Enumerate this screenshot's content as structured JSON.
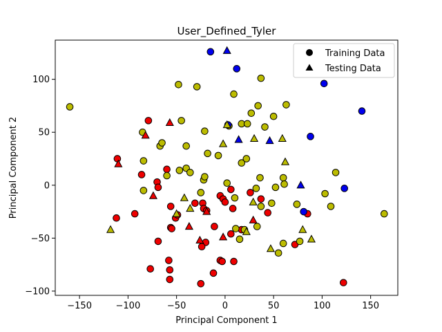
{
  "chart_data": {
    "type": "scatter",
    "title": "User_Defined_Tyler",
    "xlabel": "Principal Component 1",
    "ylabel": "Principal Component 2",
    "xlim": [
      -175,
      178
    ],
    "ylim": [
      -104,
      137
    ],
    "x_ticks": [
      -150,
      -100,
      -50,
      0,
      50,
      100,
      150
    ],
    "y_ticks": [
      -100,
      -50,
      0,
      50,
      100
    ],
    "grid": false,
    "legend_position": "top-right",
    "legend": [
      {
        "label": "Training Data",
        "marker": "circle"
      },
      {
        "label": "Testing Data",
        "marker": "triangle"
      }
    ],
    "colors": {
      "red": "#ee0000",
      "yellow": "#bcbc00",
      "blue": "#0000ee",
      "edge": "#000000"
    },
    "series": [
      {
        "marker": "circle",
        "color": "red",
        "points": [
          [
            -111,
            25
          ],
          [
            -112,
            -31
          ],
          [
            -93,
            -27
          ],
          [
            -86,
            10
          ],
          [
            -79,
            61
          ],
          [
            -70,
            3
          ],
          [
            -69,
            -2
          ],
          [
            -69,
            -53
          ],
          [
            -77,
            -79
          ],
          [
            -60,
            15
          ],
          [
            -58,
            -71
          ],
          [
            -57,
            -80
          ],
          [
            -57,
            -89
          ],
          [
            -56,
            -20
          ],
          [
            -56,
            -40
          ],
          [
            -55,
            -41
          ],
          [
            -51,
            -31
          ],
          [
            -49,
            -28
          ],
          [
            -31,
            -17
          ],
          [
            -23,
            -17
          ],
          [
            -22,
            -22
          ],
          [
            -20,
            -54
          ],
          [
            -24,
            -58
          ],
          [
            -25,
            -93
          ],
          [
            -12,
            -83
          ],
          [
            -19,
            -24
          ],
          [
            -11,
            -39
          ],
          [
            -5,
            -71
          ],
          [
            -3,
            -72
          ],
          [
            -5,
            -10
          ],
          [
            -2,
            -13
          ],
          [
            0,
            -16
          ],
          [
            6,
            -4
          ],
          [
            6,
            -46
          ],
          [
            8,
            -22
          ],
          [
            9,
            -72
          ],
          [
            17,
            -42
          ],
          [
            26,
            -7
          ],
          [
            37,
            -13
          ],
          [
            44,
            -26
          ],
          [
            72,
            -56
          ],
          [
            85,
            -27
          ],
          [
            122,
            -92
          ]
        ]
      },
      {
        "marker": "circle",
        "color": "yellow",
        "points": [
          [
            -160,
            74
          ],
          [
            -85,
            50
          ],
          [
            -84,
            23
          ],
          [
            -84,
            -5
          ],
          [
            -67,
            37
          ],
          [
            -65,
            40
          ],
          [
            -60,
            9
          ],
          [
            -48,
            95
          ],
          [
            -47,
            14
          ],
          [
            -45,
            61
          ],
          [
            -40,
            37
          ],
          [
            -40,
            16
          ],
          [
            -36,
            12
          ],
          [
            -29,
            93
          ],
          [
            -25,
            -7
          ],
          [
            -22,
            5
          ],
          [
            -21,
            8
          ],
          [
            -21,
            51
          ],
          [
            -18,
            30
          ],
          [
            -7,
            28
          ],
          [
            2,
            2
          ],
          [
            4,
            56
          ],
          [
            9,
            86
          ],
          [
            10,
            -12
          ],
          [
            11,
            -41
          ],
          [
            15,
            -51
          ],
          [
            17,
            58
          ],
          [
            17,
            21
          ],
          [
            20,
            -42
          ],
          [
            22,
            25
          ],
          [
            23,
            58
          ],
          [
            27,
            68
          ],
          [
            32,
            -3
          ],
          [
            33,
            -39
          ],
          [
            34,
            75
          ],
          [
            36,
            7
          ],
          [
            37,
            -20
          ],
          [
            37,
            101
          ],
          [
            41,
            55
          ],
          [
            48,
            -17
          ],
          [
            50,
            65
          ],
          [
            52,
            -2
          ],
          [
            55,
            -64
          ],
          [
            60,
            -55
          ],
          [
            60,
            7
          ],
          [
            61,
            1
          ],
          [
            63,
            76
          ],
          [
            74,
            -18
          ],
          [
            77,
            -53
          ],
          [
            103,
            -8
          ],
          [
            109,
            -20
          ],
          [
            114,
            12
          ],
          [
            164,
            -27
          ]
        ]
      },
      {
        "marker": "circle",
        "color": "blue",
        "points": [
          [
            -15,
            126
          ],
          [
            3,
            57
          ],
          [
            12,
            110
          ],
          [
            81,
            -25
          ],
          [
            88,
            46
          ],
          [
            102,
            96
          ],
          [
            123,
            -3
          ],
          [
            141,
            70
          ]
        ]
      },
      {
        "marker": "triangle",
        "color": "red",
        "points": [
          [
            -110,
            20
          ],
          [
            -82,
            47
          ],
          [
            -74,
            -10
          ],
          [
            -57,
            59
          ],
          [
            -37,
            -39
          ],
          [
            -26,
            -52
          ],
          [
            -19,
            -25
          ],
          [
            -2,
            -49
          ],
          [
            29,
            -33
          ]
        ]
      },
      {
        "marker": "triangle",
        "color": "yellow",
        "points": [
          [
            -118,
            -42
          ],
          [
            -50,
            -27
          ],
          [
            -42,
            -12
          ],
          [
            -36,
            -22
          ],
          [
            -2,
            39
          ],
          [
            2,
            57
          ],
          [
            22,
            -44
          ],
          [
            29,
            -16
          ],
          [
            30,
            44
          ],
          [
            47,
            -60
          ],
          [
            59,
            44
          ],
          [
            62,
            22
          ],
          [
            80,
            -42
          ],
          [
            89,
            -51
          ]
        ]
      },
      {
        "marker": "triangle",
        "color": "blue",
        "points": [
          [
            2,
            127
          ],
          [
            14,
            43
          ],
          [
            46,
            42
          ],
          [
            78,
            0
          ]
        ]
      }
    ]
  }
}
